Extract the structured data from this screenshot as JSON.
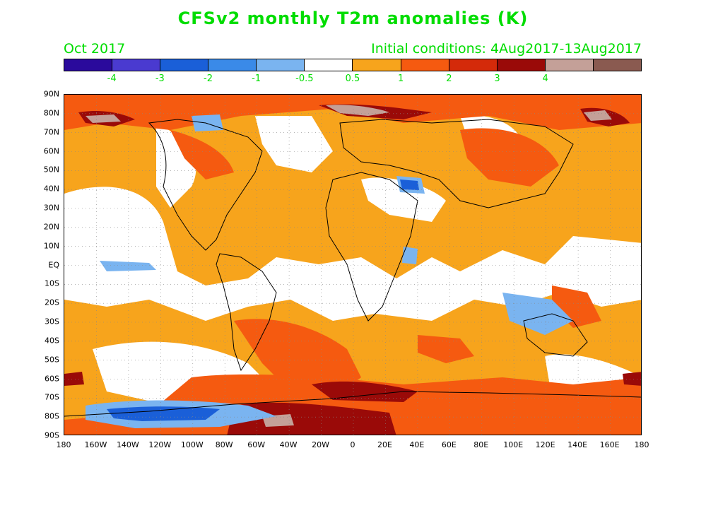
{
  "title": "CFSv2 monthly T2m anomalies (K)",
  "forecast_month": "Oct 2017",
  "initial_conditions": "Initial conditions: 4Aug2017-13Aug2017",
  "colorbar": {
    "colors": [
      "#2a0a9c",
      "#4a3ad0",
      "#1a5fd8",
      "#3a8ae8",
      "#7ab4f0",
      "#ffffff",
      "#f7a41c",
      "#f55a10",
      "#d42a0a",
      "#9a0a08",
      "#c4a098",
      "#8a5a50"
    ],
    "labels": [
      "-4",
      "-3",
      "-2",
      "-1",
      "-0.5",
      "0.5",
      "1",
      "2",
      "3",
      "4"
    ]
  },
  "lat_labels": [
    "90N",
    "80N",
    "70N",
    "60N",
    "50N",
    "40N",
    "30N",
    "20N",
    "10N",
    "EQ",
    "10S",
    "20S",
    "30S",
    "40S",
    "50S",
    "60S",
    "70S",
    "80S",
    "90S"
  ],
  "lon_labels": [
    "180",
    "160W",
    "140W",
    "120W",
    "100W",
    "80W",
    "60W",
    "40W",
    "20W",
    "0",
    "20E",
    "40E",
    "60E",
    "80E",
    "100E",
    "120E",
    "140E",
    "160E",
    "180"
  ]
}
